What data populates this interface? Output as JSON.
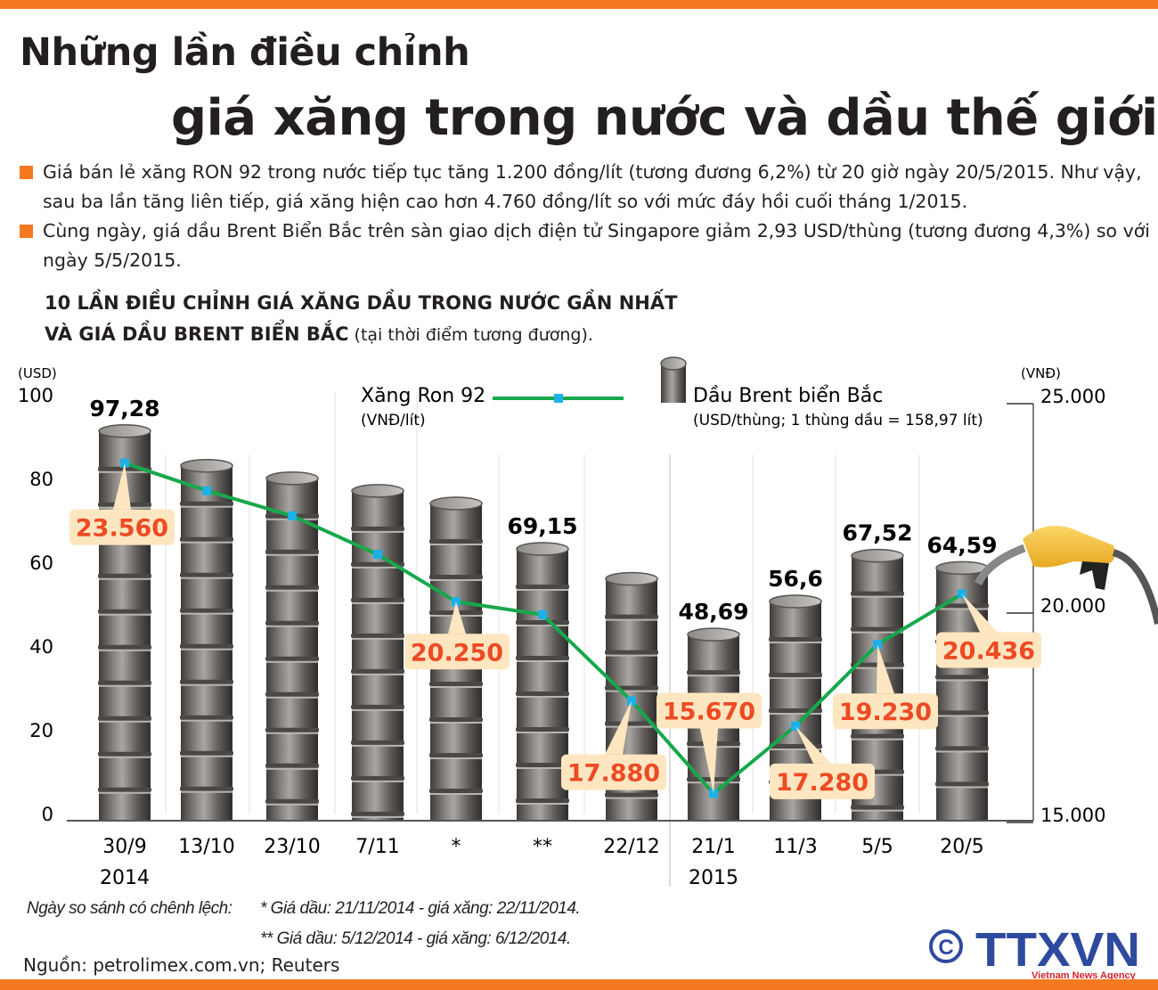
{
  "title": {
    "line1": "Những lần điều chỉnh",
    "line2": "giá xăng trong nước và dầu thế giới"
  },
  "bullets": [
    "Giá bán lẻ xăng RON 92 trong nước tiếp tục tăng 1.200 đồng/lít (tương đương 6,2%) từ 20 giờ ngày 20/5/2015. Như vậy, sau ba lần tăng liên tiếp, giá xăng hiện cao hơn 4.760 đồng/lít so với mức đáy hồi cuối tháng 1/2015.",
    "Cùng ngày, giá dầu Brent Biển Bắc trên sàn giao dịch điện tử Singapore giảm 2,93 USD/thùng (tương đương 4,3%) so với ngày 5/5/2015."
  ],
  "subtitle": {
    "line1": "10 LẦN ĐIỀU CHỈNH GIÁ XĂNG DẦU TRONG NƯỚC GẦN NHẤT",
    "line2": "VÀ GIÁ DẦU BRENT BIỂN BẮC",
    "line2_small": " (tại thời điểm tương đương)."
  },
  "chart_data": {
    "type": "bar+line",
    "categories": [
      "30/9",
      "13/10",
      "23/10",
      "7/11",
      "*",
      "**",
      "22/12",
      "21/1",
      "11/3",
      "5/5",
      "20/5"
    ],
    "year_labels": [
      {
        "category": "30/9",
        "label": "2014"
      },
      {
        "category": "21/1",
        "label": "2015"
      }
    ],
    "left_axis": {
      "unit": "(USD)",
      "range": [
        0,
        100
      ],
      "ticks": [
        "0",
        "20",
        "40",
        "60",
        "80",
        "100"
      ]
    },
    "right_axis": {
      "unit": "(VNĐ)",
      "range": [
        15000,
        25000
      ],
      "ticks": [
        "15.000",
        "20.000",
        "25.000"
      ]
    },
    "series": [
      {
        "name": "Dầu Brent biển Bắc",
        "unit_note": "(USD/thùng; 1 thùng dầu = 158,97 lít)",
        "kind": "bar",
        "axis": "left",
        "values": [
          97.28,
          89,
          86,
          83,
          80,
          69.15,
          62,
          48.69,
          56.6,
          67.52,
          64.59
        ],
        "labels": [
          "97,28",
          "",
          "",
          "",
          "",
          "69,15",
          "",
          "48,69",
          "56,6",
          "67,52",
          "64,59"
        ],
        "color": "#6d6a67"
      },
      {
        "name": "Xăng Ron 92",
        "unit_note": "(VNĐ/lít)",
        "kind": "line",
        "axis": "right",
        "values": [
          23560,
          22900,
          22300,
          21380,
          20250,
          19940,
          17880,
          15670,
          17280,
          19230,
          20436
        ],
        "labels": [
          "23.560",
          "",
          "",
          "",
          "20.250",
          "",
          "17.880",
          "15.670",
          "17.280",
          "19.230",
          "20.436"
        ],
        "color": "#17a84b",
        "marker_color": "#1bb0e8",
        "label_color": "#ee4a23",
        "label_bg": "#fde6c0"
      }
    ],
    "grid": "vertical separators"
  },
  "notes": {
    "lead": "Ngày so sánh có chênh lệch:",
    "n1": "* Giá dầu: 21/11/2014 - giá xăng: 22/11/2014.",
    "n2": "** Giá dầu: 5/12/2014 - giá xăng: 6/12/2014."
  },
  "source": "Nguồn: petrolimex.com.vn; Reuters",
  "logo": {
    "text": "TTXVN",
    "tagline": "Vietnam News Agency",
    "copyright": "©"
  }
}
